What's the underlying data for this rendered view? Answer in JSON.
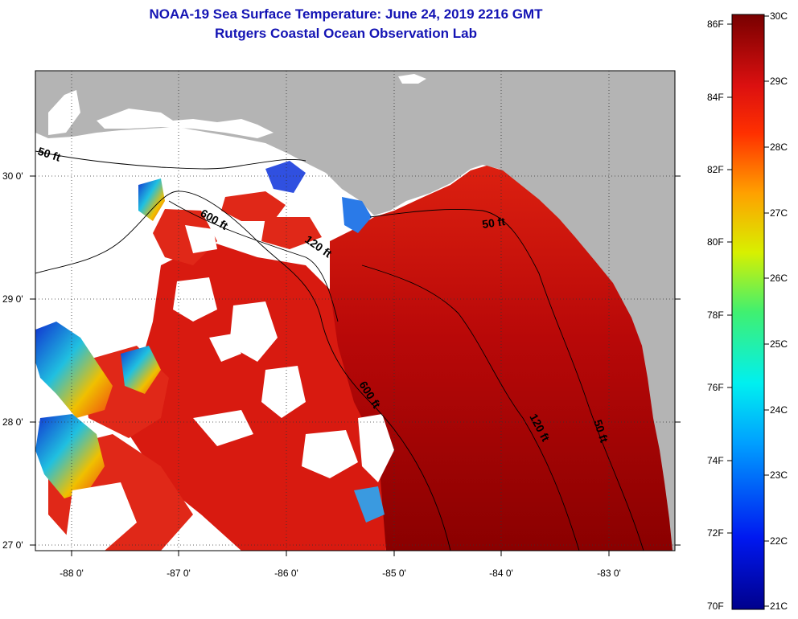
{
  "title": {
    "line1": "NOAA-19 Sea Surface Temperature:  June 24, 2019 2216 GMT",
    "line2": "Rutgers Coastal Ocean Observation Lab"
  },
  "map": {
    "lat_labels": [
      "30 0'",
      "29 0'",
      "28 0'",
      "27 0'"
    ],
    "lon_labels": [
      "-88 0'",
      "-87 0'",
      "-86 0'",
      "-85 0'",
      "-84 0'",
      "-83 0'"
    ],
    "contour_labels": {
      "west_50": "50 ft",
      "west_600": "600 ft",
      "west_120": "120 ft",
      "shelf_600": "600 ft",
      "east_50_top": "50 ft",
      "east_120": "120 ft",
      "east_50_bottom": "50 ft"
    },
    "colors": {
      "land": "#b4b4b4",
      "cloud": "#ffffff",
      "warm_water": "#dc1a10",
      "hot_water": "#8c0000"
    }
  },
  "colorbar": {
    "f_labels": [
      "86F",
      "84F",
      "82F",
      "80F",
      "78F",
      "76F",
      "74F",
      "72F",
      "70F"
    ],
    "c_labels": [
      "30C",
      "29C",
      "28C",
      "27C",
      "26C",
      "25C",
      "24C",
      "23C",
      "22C",
      "21C"
    ]
  }
}
